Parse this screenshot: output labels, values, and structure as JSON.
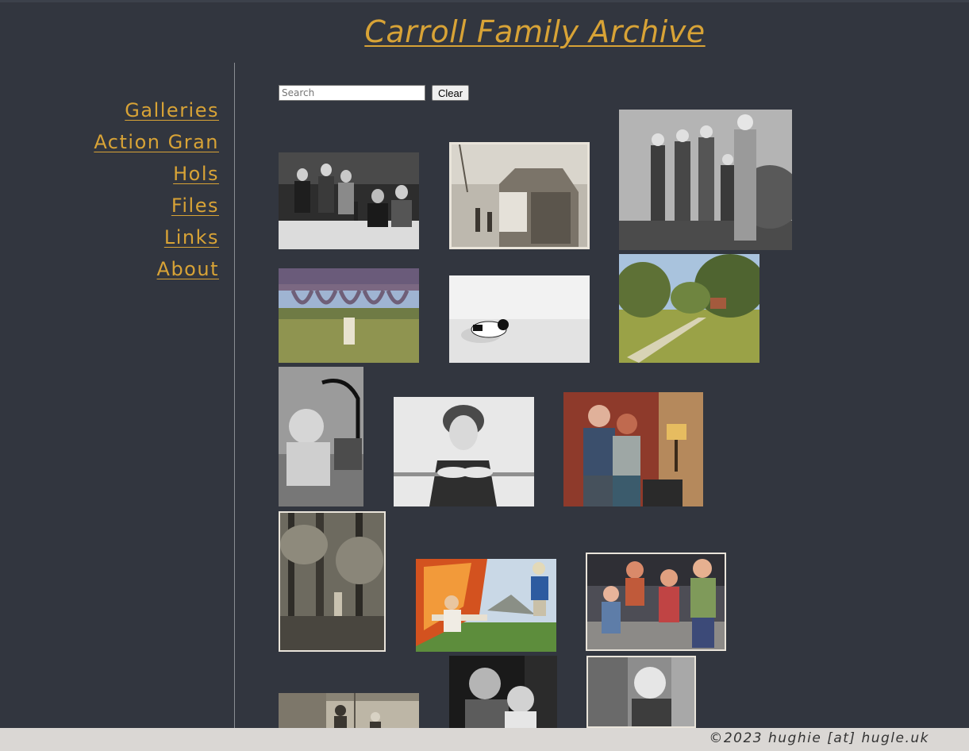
{
  "site": {
    "title": "Carroll Family Archive"
  },
  "nav": {
    "items": [
      {
        "label": "Galleries"
      },
      {
        "label": "Action Gran"
      },
      {
        "label": "Hols"
      },
      {
        "label": "Files"
      },
      {
        "label": "Links"
      },
      {
        "label": "About"
      }
    ]
  },
  "search": {
    "placeholder": "Search",
    "value": "",
    "clear_label": "Clear"
  },
  "footer": {
    "text": "©2023 hughie [at] hugle.uk"
  },
  "colors": {
    "background": "#32363f",
    "accent": "#d8a336",
    "footer_background": "#dad7d4"
  }
}
